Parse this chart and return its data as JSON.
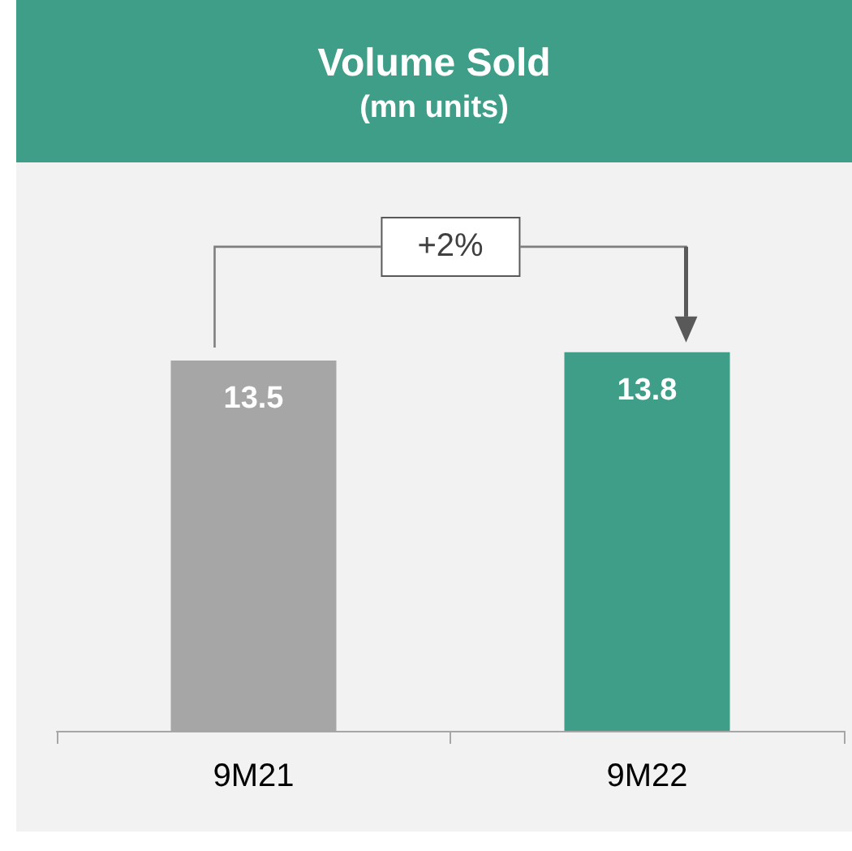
{
  "chart_data": {
    "type": "bar",
    "title": "Volume Sold",
    "subtitle": "(mn units)",
    "categories": [
      "9M21",
      "9M22"
    ],
    "values": [
      13.5,
      13.8
    ],
    "colors": [
      "#a6a6a6",
      "#3f9e87"
    ],
    "data_labels": true,
    "annotations": [
      "+2%"
    ]
  }
}
